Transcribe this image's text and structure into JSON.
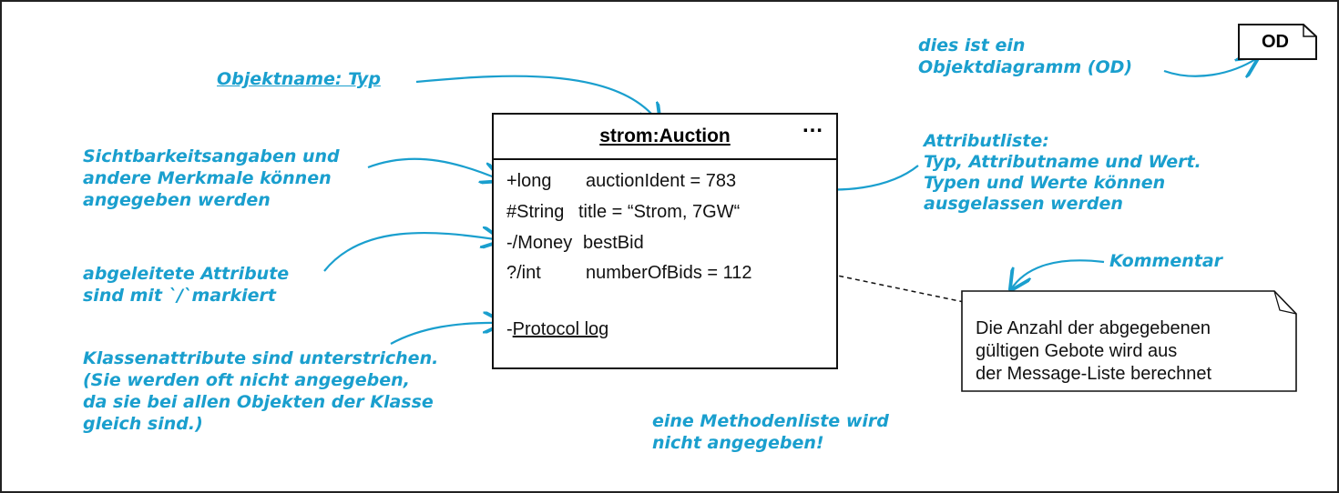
{
  "od_tag": {
    "label": "OD"
  },
  "object": {
    "title": "strom:Auction",
    "more": "…",
    "attributes": [
      {
        "visibility_type": "+long",
        "name_value": "auctionIdent = 783"
      },
      {
        "visibility_type": "#String",
        "name_value": "title = “Strom, 7GW“"
      },
      {
        "visibility_type": "-/Money",
        "name_value": "bestBid"
      },
      {
        "visibility_type": "?/int",
        "name_value": "numberOfBids = 112"
      }
    ],
    "class_attribute": {
      "prefix": "-",
      "text": "Protocol log"
    }
  },
  "comment": {
    "lines": [
      "Die Anzahl der abgegebenen",
      "gültigen Gebote wird aus",
      "der Message-Liste berechnet"
    ]
  },
  "annotations": {
    "objektname": "Objektname: Typ",
    "od_hint": [
      "dies ist ein",
      "Objektdiagramm (OD)"
    ],
    "sichtbarkeit": [
      "Sichtbarkeitsangaben und",
      "andere Merkmale können",
      "angegeben werden"
    ],
    "attributliste": [
      "Attributliste:",
      "Typ, Attributname und Wert.",
      "Typen und Werte können",
      "ausgelassen werden"
    ],
    "abgeleitet": [
      "abgeleitete Attribute",
      "sind mit `/`markiert"
    ],
    "kommentar": "Kommentar",
    "klassenattribute": [
      "Klassenattribute sind unterstrichen.",
      "(Sie werden oft nicht angegeben,",
      "da sie bei allen Objekten der Klasse",
      "gleich sind.)"
    ],
    "methodenliste": [
      "eine Methodenliste wird",
      "nicht angegeben!"
    ]
  },
  "colors": {
    "annotation": "#1a9fce",
    "ink": "#111111"
  }
}
